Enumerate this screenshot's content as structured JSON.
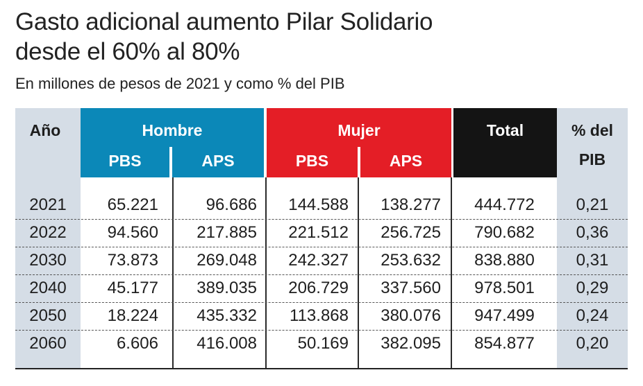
{
  "title": {
    "line1": "Gasto adicional aumento Pilar Solidario",
    "line2": "desde el 60% al 80%"
  },
  "subtitle": "En millones de pesos de 2021 y como % del PIB",
  "colors": {
    "year_col": "#d5dde6",
    "hombre": "#0b88b8",
    "mujer": "#e41e26",
    "total": "#141414",
    "pib_col": "#d5dde6",
    "rows_bg": "#ffffff"
  },
  "header": {
    "anio": "Año",
    "hombre": "Hombre",
    "mujer": "Mujer",
    "total": "Total",
    "pib_line1": "% del",
    "pib_line2": "PIB",
    "hombre_pbs": "PBS",
    "hombre_aps": "APS",
    "mujer_pbs": "PBS",
    "mujer_aps": "APS"
  },
  "rows": [
    {
      "year": "2021",
      "h_pbs": "65.221",
      "h_aps": "96.686",
      "m_pbs": "144.588",
      "m_aps": "138.277",
      "total": "444.772",
      "pib": "0,21"
    },
    {
      "year": "2022",
      "h_pbs": "94.560",
      "h_aps": "217.885",
      "m_pbs": "221.512",
      "m_aps": "256.725",
      "total": "790.682",
      "pib": "0,36"
    },
    {
      "year": "2030",
      "h_pbs": "73.873",
      "h_aps": "269.048",
      "m_pbs": "242.327",
      "m_aps": "253.632",
      "total": "838.880",
      "pib": "0,31"
    },
    {
      "year": "2040",
      "h_pbs": "45.177",
      "h_aps": "389.035",
      "m_pbs": "206.729",
      "m_aps": "337.560",
      "total": "978.501",
      "pib": "0,29"
    },
    {
      "year": "2050",
      "h_pbs": "18.224",
      "h_aps": "435.332",
      "m_pbs": "113.868",
      "m_aps": "380.076",
      "total": "947.499",
      "pib": "0,24"
    },
    {
      "year": "2060",
      "h_pbs": "6.606",
      "h_aps": "416.008",
      "m_pbs": "50.169",
      "m_aps": "382.095",
      "total": "854.877",
      "pib": "0,20"
    }
  ]
}
